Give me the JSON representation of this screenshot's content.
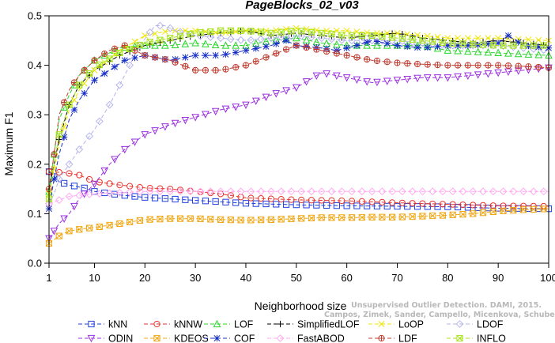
{
  "chart_data": {
    "type": "line",
    "title": "PageBlocks_02_v03",
    "xlabel": "Neighborhood size",
    "ylabel": "Maximum F1",
    "xlim": [
      1,
      100
    ],
    "ylim": [
      0.0,
      0.5
    ],
    "xticks": [
      1,
      10,
      20,
      30,
      40,
      50,
      60,
      70,
      80,
      90,
      100
    ],
    "yticks": [
      0.0,
      0.1,
      0.2,
      0.3,
      0.4,
      0.5
    ],
    "ytick_labels": [
      "0.0",
      "0.1",
      "0.2",
      "0.3",
      "0.4",
      "0.5"
    ],
    "grid": false,
    "legend_position": "bottom",
    "series": [
      {
        "name": "kNN",
        "color": "#1f3fdc",
        "marker": "square",
        "points": [
          [
            1,
            0.185
          ],
          [
            3,
            0.165
          ],
          [
            5,
            0.158
          ],
          [
            8,
            0.152
          ],
          [
            10,
            0.145
          ],
          [
            15,
            0.138
          ],
          [
            20,
            0.133
          ],
          [
            25,
            0.13
          ],
          [
            30,
            0.127
          ],
          [
            40,
            0.121
          ],
          [
            50,
            0.118
          ],
          [
            60,
            0.116
          ],
          [
            70,
            0.115
          ],
          [
            80,
            0.114
          ],
          [
            90,
            0.111
          ],
          [
            100,
            0.11
          ]
        ]
      },
      {
        "name": "kNNW",
        "color": "#e8342c",
        "marker": "circle",
        "points": [
          [
            1,
            0.185
          ],
          [
            4,
            0.183
          ],
          [
            7,
            0.178
          ],
          [
            10,
            0.165
          ],
          [
            15,
            0.158
          ],
          [
            20,
            0.152
          ],
          [
            25,
            0.15
          ],
          [
            30,
            0.145
          ],
          [
            35,
            0.14
          ],
          [
            40,
            0.132
          ],
          [
            50,
            0.128
          ],
          [
            60,
            0.126
          ],
          [
            70,
            0.122
          ],
          [
            80,
            0.119
          ],
          [
            90,
            0.116
          ],
          [
            100,
            0.115
          ]
        ]
      },
      {
        "name": "LOF",
        "color": "#29d62a",
        "marker": "triangle-up",
        "points": [
          [
            1,
            0.145
          ],
          [
            2,
            0.22
          ],
          [
            3,
            0.29
          ],
          [
            5,
            0.34
          ],
          [
            7,
            0.38
          ],
          [
            10,
            0.41
          ],
          [
            15,
            0.435
          ],
          [
            20,
            0.44
          ],
          [
            25,
            0.44
          ],
          [
            30,
            0.445
          ],
          [
            35,
            0.44
          ],
          [
            40,
            0.44
          ],
          [
            45,
            0.45
          ],
          [
            50,
            0.455
          ],
          [
            55,
            0.445
          ],
          [
            60,
            0.44
          ],
          [
            65,
            0.44
          ],
          [
            70,
            0.44
          ],
          [
            75,
            0.44
          ],
          [
            80,
            0.43
          ],
          [
            90,
            0.425
          ],
          [
            100,
            0.42
          ]
        ]
      },
      {
        "name": "SimplifiedLOF",
        "color": "#000000",
        "marker": "plus",
        "points": [
          [
            1,
            0.15
          ],
          [
            2,
            0.2
          ],
          [
            3,
            0.25
          ],
          [
            5,
            0.32
          ],
          [
            7,
            0.36
          ],
          [
            10,
            0.39
          ],
          [
            15,
            0.42
          ],
          [
            20,
            0.44
          ],
          [
            25,
            0.45
          ],
          [
            30,
            0.46
          ],
          [
            35,
            0.465
          ],
          [
            40,
            0.47
          ],
          [
            45,
            0.46
          ],
          [
            50,
            0.465
          ],
          [
            55,
            0.46
          ],
          [
            60,
            0.455
          ],
          [
            65,
            0.46
          ],
          [
            70,
            0.465
          ],
          [
            75,
            0.455
          ],
          [
            80,
            0.45
          ],
          [
            85,
            0.445
          ],
          [
            90,
            0.45
          ],
          [
            95,
            0.445
          ],
          [
            100,
            0.44
          ]
        ]
      },
      {
        "name": "LoOP",
        "color": "#f0e400",
        "marker": "x",
        "points": [
          [
            1,
            0.14
          ],
          [
            2,
            0.19
          ],
          [
            3,
            0.24
          ],
          [
            5,
            0.31
          ],
          [
            7,
            0.35
          ],
          [
            10,
            0.39
          ],
          [
            15,
            0.43
          ],
          [
            20,
            0.46
          ],
          [
            25,
            0.47
          ],
          [
            30,
            0.47
          ],
          [
            35,
            0.465
          ],
          [
            40,
            0.47
          ],
          [
            45,
            0.47
          ],
          [
            50,
            0.475
          ],
          [
            55,
            0.47
          ],
          [
            60,
            0.47
          ],
          [
            65,
            0.465
          ],
          [
            70,
            0.465
          ],
          [
            75,
            0.46
          ],
          [
            80,
            0.455
          ],
          [
            90,
            0.455
          ],
          [
            100,
            0.45
          ]
        ]
      },
      {
        "name": "LDOF",
        "color": "#b5b5ee",
        "marker": "diamond",
        "points": [
          [
            1,
            0.12
          ],
          [
            2,
            0.14
          ],
          [
            3,
            0.17
          ],
          [
            5,
            0.2
          ],
          [
            7,
            0.23
          ],
          [
            10,
            0.27
          ],
          [
            13,
            0.32
          ],
          [
            16,
            0.38
          ],
          [
            19,
            0.44
          ],
          [
            22,
            0.48
          ],
          [
            24,
            0.48
          ],
          [
            26,
            0.47
          ],
          [
            30,
            0.46
          ],
          [
            35,
            0.455
          ],
          [
            40,
            0.45
          ],
          [
            50,
            0.46
          ],
          [
            60,
            0.45
          ],
          [
            70,
            0.45
          ],
          [
            80,
            0.44
          ],
          [
            90,
            0.44
          ],
          [
            100,
            0.43
          ]
        ]
      },
      {
        "name": "ODIN",
        "color": "#9b30e0",
        "marker": "triangle-down",
        "points": [
          [
            1,
            0.05
          ],
          [
            3,
            0.08
          ],
          [
            5,
            0.1
          ],
          [
            7,
            0.13
          ],
          [
            10,
            0.16
          ],
          [
            13,
            0.2
          ],
          [
            16,
            0.23
          ],
          [
            20,
            0.26
          ],
          [
            25,
            0.28
          ],
          [
            30,
            0.295
          ],
          [
            35,
            0.31
          ],
          [
            40,
            0.32
          ],
          [
            45,
            0.34
          ],
          [
            50,
            0.355
          ],
          [
            55,
            0.385
          ],
          [
            60,
            0.375
          ],
          [
            65,
            0.365
          ],
          [
            70,
            0.37
          ],
          [
            75,
            0.375
          ],
          [
            80,
            0.375
          ],
          [
            85,
            0.38
          ],
          [
            90,
            0.385
          ],
          [
            95,
            0.39
          ],
          [
            100,
            0.395
          ]
        ]
      },
      {
        "name": "KDEOS",
        "color": "#f0a818",
        "marker": "square-x",
        "points": [
          [
            1,
            0.04
          ],
          [
            3,
            0.055
          ],
          [
            5,
            0.065
          ],
          [
            8,
            0.07
          ],
          [
            10,
            0.072
          ],
          [
            15,
            0.08
          ],
          [
            20,
            0.088
          ],
          [
            25,
            0.09
          ],
          [
            30,
            0.09
          ],
          [
            35,
            0.088
          ],
          [
            40,
            0.087
          ],
          [
            45,
            0.088
          ],
          [
            50,
            0.09
          ],
          [
            55,
            0.092
          ],
          [
            60,
            0.092
          ],
          [
            65,
            0.093
          ],
          [
            70,
            0.093
          ],
          [
            75,
            0.095
          ],
          [
            80,
            0.097
          ],
          [
            85,
            0.1
          ],
          [
            90,
            0.105
          ],
          [
            95,
            0.108
          ],
          [
            100,
            0.11
          ]
        ]
      },
      {
        "name": "COF",
        "color": "#1830c8",
        "marker": "asterisk",
        "points": [
          [
            1,
            0.11
          ],
          [
            2,
            0.17
          ],
          [
            3,
            0.22
          ],
          [
            5,
            0.29
          ],
          [
            7,
            0.33
          ],
          [
            10,
            0.37
          ],
          [
            13,
            0.39
          ],
          [
            16,
            0.41
          ],
          [
            20,
            0.42
          ],
          [
            25,
            0.41
          ],
          [
            30,
            0.42
          ],
          [
            35,
            0.42
          ],
          [
            40,
            0.43
          ],
          [
            45,
            0.44
          ],
          [
            48,
            0.45
          ],
          [
            50,
            0.44
          ],
          [
            55,
            0.435
          ],
          [
            58,
            0.43
          ],
          [
            62,
            0.44
          ],
          [
            65,
            0.45
          ],
          [
            70,
            0.44
          ],
          [
            75,
            0.435
          ],
          [
            80,
            0.44
          ],
          [
            85,
            0.44
          ],
          [
            90,
            0.445
          ],
          [
            92,
            0.46
          ],
          [
            95,
            0.44
          ],
          [
            100,
            0.435
          ]
        ]
      },
      {
        "name": "FastABOD",
        "color": "#ffaaf2",
        "marker": "diamond",
        "points": [
          [
            1,
            0.12
          ],
          [
            5,
            0.135
          ],
          [
            10,
            0.14
          ],
          [
            20,
            0.145
          ],
          [
            30,
            0.145
          ],
          [
            40,
            0.145
          ],
          [
            50,
            0.145
          ],
          [
            60,
            0.145
          ],
          [
            70,
            0.145
          ],
          [
            80,
            0.145
          ],
          [
            90,
            0.145
          ],
          [
            100,
            0.145
          ]
        ]
      },
      {
        "name": "LDF",
        "color": "#c03c30",
        "marker": "circle-plus",
        "points": [
          [
            1,
            0.15
          ],
          [
            2,
            0.22
          ],
          [
            3,
            0.3
          ],
          [
            5,
            0.35
          ],
          [
            7,
            0.38
          ],
          [
            10,
            0.41
          ],
          [
            13,
            0.43
          ],
          [
            16,
            0.44
          ],
          [
            20,
            0.42
          ],
          [
            25,
            0.41
          ],
          [
            30,
            0.39
          ],
          [
            35,
            0.39
          ],
          [
            40,
            0.4
          ],
          [
            45,
            0.42
          ],
          [
            50,
            0.44
          ],
          [
            55,
            0.43
          ],
          [
            60,
            0.42
          ],
          [
            65,
            0.41
          ],
          [
            70,
            0.405
          ],
          [
            75,
            0.402
          ],
          [
            80,
            0.4
          ],
          [
            85,
            0.4
          ],
          [
            90,
            0.4
          ],
          [
            95,
            0.398
          ],
          [
            100,
            0.395
          ]
        ]
      },
      {
        "name": "INFLO",
        "color": "#a8e41c",
        "marker": "square-x",
        "points": [
          [
            1,
            0.13
          ],
          [
            2,
            0.2
          ],
          [
            3,
            0.26
          ],
          [
            5,
            0.32
          ],
          [
            7,
            0.36
          ],
          [
            10,
            0.395
          ],
          [
            15,
            0.425
          ],
          [
            20,
            0.445
          ],
          [
            25,
            0.455
          ],
          [
            30,
            0.465
          ],
          [
            35,
            0.47
          ],
          [
            40,
            0.47
          ],
          [
            45,
            0.465
          ],
          [
            50,
            0.47
          ],
          [
            55,
            0.465
          ],
          [
            60,
            0.46
          ],
          [
            65,
            0.46
          ],
          [
            70,
            0.455
          ],
          [
            75,
            0.45
          ],
          [
            80,
            0.445
          ],
          [
            90,
            0.44
          ],
          [
            100,
            0.44
          ]
        ]
      }
    ],
    "legend_rows": [
      [
        "kNN",
        "kNNW",
        "LOF",
        "SimplifiedLOF",
        "LoOP",
        "LDOF"
      ],
      [
        "ODIN",
        "KDEOS",
        "COF",
        "FastABOD",
        "LDF",
        "INFLO"
      ]
    ]
  },
  "watermark": {
    "line1": "Unsupervised Outlier Detection. DAMI, 2015.",
    "line2": "Campos, Zimek, Sander, Campello, Micenkova, Schubert, Assent, Houle"
  }
}
